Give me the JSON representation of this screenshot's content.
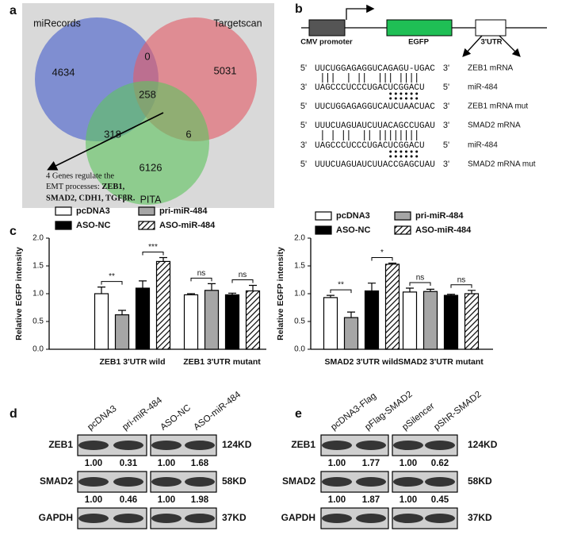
{
  "panel_labels": [
    "a",
    "b",
    "c",
    "d",
    "e"
  ],
  "venn": {
    "sets": [
      "miRecords",
      "Targetscan",
      "PITA"
    ],
    "regions": [
      4634,
      0,
      5031,
      258,
      318,
      6,
      6126
    ],
    "note_lines": [
      "4 Genes regulate the",
      "EMT processes: "
    ],
    "note_genes": [
      "ZEB1,",
      "SMAD2, CDH1, TGFβR."
    ]
  },
  "construct": {
    "parts": [
      "CMV promoter",
      "EGFP",
      "3'UTR"
    ]
  },
  "alignments": [
    {
      "rows": [
        {
          "left": "5'",
          "seq": "UUCUGGAGAGGUCAGAGU-UGAC",
          "right": "3'",
          "name": "ZEB1 mRNA"
        },
        {
          "left": "3'",
          "seq": "UAGCCCUCCCUGACUCGGACU",
          "right": "5'",
          "name": "miR-484"
        },
        {
          "left": "5'",
          "seq": "UUCUGGAGAGGUCAUCUAACUAC",
          "right": "3'",
          "name": "ZEB1 mRNA  mut"
        }
      ]
    },
    {
      "rows": [
        {
          "left": "5'",
          "seq": "UUUCUAGUAUCUUACAGCCUGAU",
          "right": "3'",
          "name": "SMAD2 mRNA"
        },
        {
          "left": "3'",
          "seq": "UAGCCCUCCCUGACUCGGACU",
          "right": "5'",
          "name": "miR-484"
        },
        {
          "left": "5'",
          "seq": "UUUCUAGUAUCUUACCGAGCUAU",
          "right": "3'",
          "name": "SMAD2 mRNA mut"
        }
      ]
    }
  ],
  "chart_data": [
    {
      "type": "bar",
      "ylabel": "Relative EGFP intensity",
      "categories": [
        "ZEB1 3'UTR wild",
        "ZEB1 3'UTR mutant"
      ],
      "series": [
        {
          "name": "pcDNA3",
          "color": "#ffffff",
          "values": [
            1.0,
            0.98
          ],
          "errors": [
            0.12,
            0.02
          ]
        },
        {
          "name": "pri-miR-484",
          "color": "#a6a6a6",
          "values": [
            0.62,
            1.06
          ],
          "errors": [
            0.08,
            0.12
          ]
        },
        {
          "name": "ASO-NC",
          "color": "#000000",
          "values": [
            1.1,
            0.98
          ],
          "errors": [
            0.13,
            0.03
          ]
        },
        {
          "name": "ASO-miR-484",
          "color": "#ffffff",
          "hatch": true,
          "values": [
            1.58,
            1.05
          ],
          "errors": [
            0.07,
            0.1
          ]
        }
      ],
      "ylim": [
        0,
        2
      ],
      "yticks": [
        {
          "value": 0,
          "label": "0.0"
        },
        {
          "value": 0.5,
          "label": "0.5"
        },
        {
          "value": 1,
          "label": "1.0"
        },
        {
          "value": 1.5,
          "label": "1.5"
        },
        {
          "value": 2,
          "label": "2.0"
        }
      ],
      "significance": [
        "**",
        "***",
        "ns",
        "ns"
      ]
    },
    {
      "type": "bar",
      "ylabel": "Relative EGFP intensity",
      "categories": [
        "SMAD2 3'UTR wild",
        "SMAD2 3'UTR mutant"
      ],
      "series": [
        {
          "name": "pcDNA3",
          "color": "#ffffff",
          "values": [
            0.93,
            1.03
          ],
          "errors": [
            0.04,
            0.07
          ]
        },
        {
          "name": "pri-miR-484",
          "color": "#a6a6a6",
          "values": [
            0.57,
            1.04
          ],
          "errors": [
            0.1,
            0.04
          ]
        },
        {
          "name": "ASO-NC",
          "color": "#000000",
          "values": [
            1.05,
            0.97
          ],
          "errors": [
            0.14,
            0.02
          ]
        },
        {
          "name": "ASO-miR-484",
          "color": "#ffffff",
          "hatch": true,
          "values": [
            1.53,
            1.0
          ],
          "errors": [
            0.02,
            0.06
          ]
        }
      ],
      "ylim": [
        0,
        2
      ],
      "yticks": [
        {
          "value": 0,
          "label": "0.0"
        },
        {
          "value": 0.5,
          "label": "0.5"
        },
        {
          "value": 1,
          "label": "1.0"
        },
        {
          "value": 1.5,
          "label": "1.5"
        },
        {
          "value": 2,
          "label": "2.0"
        }
      ],
      "significance": [
        "**",
        "*",
        "ns",
        "ns"
      ]
    }
  ],
  "blots": [
    {
      "lanes": [
        "pcDNA3",
        "pri-miR-484",
        "ASO-NC",
        "ASO-miR-484"
      ],
      "rows": [
        {
          "name": "ZEB1",
          "size": "124KD",
          "quant": [
            "1.00",
            "0.31",
            "1.00",
            "1.68"
          ]
        },
        {
          "name": "SMAD2",
          "size": "58KD",
          "quant": [
            "1.00",
            "0.46",
            "1.00",
            "1.98"
          ]
        },
        {
          "name": "GAPDH",
          "size": "37KD"
        }
      ]
    },
    {
      "lanes": [
        "pcDNA3-Flag",
        "pFlag-SMAD2",
        "pSilencer",
        "pShR-SMAD2"
      ],
      "rows": [
        {
          "name": "ZEB1",
          "size": "124KD",
          "quant": [
            "1.00",
            "1.77",
            "1.00",
            "0.62"
          ]
        },
        {
          "name": "SMAD2",
          "size": "58KD",
          "quant": [
            "1.00",
            "1.87",
            "1.00",
            "0.45"
          ]
        },
        {
          "name": "GAPDH",
          "size": "37KD"
        }
      ]
    }
  ]
}
